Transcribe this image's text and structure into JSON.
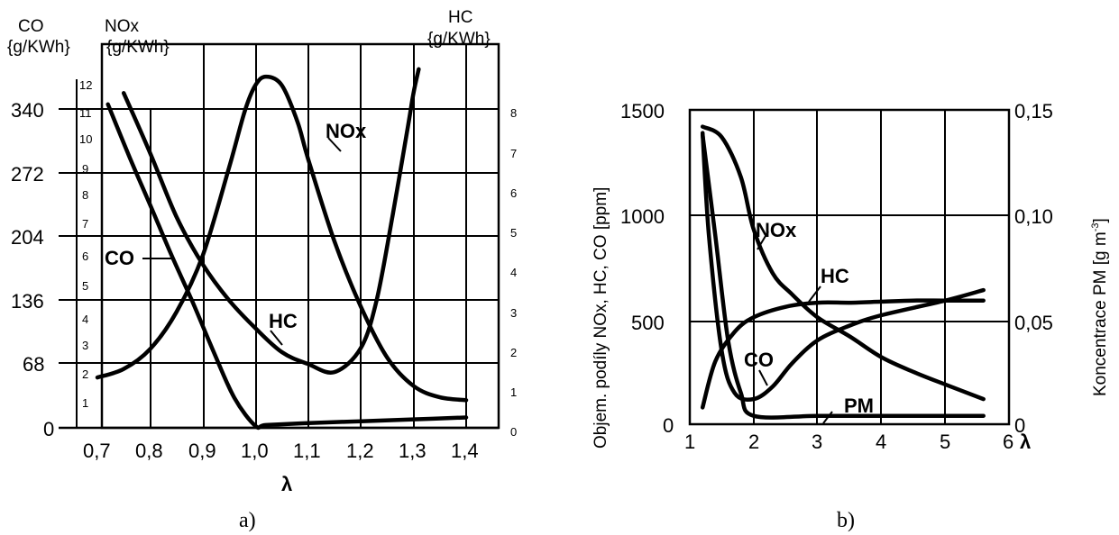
{
  "chart_data": [
    {
      "panel": "a)",
      "type": "line",
      "xlabel": "λ",
      "x_ticks": [
        "0,7",
        "0,8",
        "0,9",
        "1,0",
        "1,1",
        "1,2",
        "1,3",
        "1,4"
      ],
      "xlim": [
        0.7,
        1.4
      ],
      "axis_co": {
        "title": [
          "CO",
          "{g/KWh}"
        ],
        "ticks": [
          "0",
          "68",
          "136",
          "204",
          "272",
          "340"
        ],
        "lim": [
          0,
          340
        ]
      },
      "axis_nox": {
        "title": [
          "NOx",
          "{g/KWh}"
        ],
        "ticks": [
          "1",
          "2",
          "3",
          "4",
          "5",
          "6",
          "7",
          "8",
          "9",
          "10",
          "11",
          "12"
        ],
        "lim": [
          0,
          12
        ]
      },
      "axis_hc": {
        "title": [
          "HC",
          "{g/KWh}"
        ],
        "ticks": [
          "0",
          "1",
          "2",
          "3",
          "4",
          "5",
          "6",
          "7",
          "8"
        ],
        "lim": [
          0,
          8
        ]
      },
      "series": [
        {
          "name": "CO",
          "axis": "co",
          "x": [
            0.72,
            0.76,
            0.8,
            0.84,
            0.88,
            0.92,
            0.96,
            1.0,
            1.02,
            1.1,
            1.2,
            1.3,
            1.4
          ],
          "y": [
            345,
            290,
            238,
            185,
            135,
            82,
            32,
            2,
            3,
            5,
            7,
            9,
            11
          ]
        },
        {
          "name": "NOx",
          "axis": "nox",
          "x": [
            0.7,
            0.75,
            0.8,
            0.85,
            0.9,
            0.95,
            0.98,
            1.0,
            1.02,
            1.05,
            1.08,
            1.1,
            1.15,
            1.2,
            1.25,
            1.3,
            1.35,
            1.4
          ],
          "y": [
            1.3,
            1.6,
            2.3,
            3.6,
            5.6,
            8.7,
            10.7,
            11.6,
            11.9,
            11.6,
            10.3,
            9.0,
            6.1,
            3.8,
            2.0,
            1.0,
            0.6,
            0.5
          ]
        },
        {
          "name": "HC",
          "axis": "hc",
          "x": [
            0.75,
            0.8,
            0.85,
            0.9,
            0.95,
            1.0,
            1.05,
            1.1,
            1.15,
            1.2,
            1.23,
            1.26,
            1.29,
            1.3,
            1.31
          ],
          "y": [
            8.4,
            6.9,
            5.3,
            4.1,
            3.2,
            2.5,
            1.9,
            1.6,
            1.4,
            2.0,
            3.2,
            5.3,
            7.6,
            8.4,
            9.0
          ]
        }
      ],
      "annotations": [
        "CO",
        "NOx",
        "HC"
      ]
    },
    {
      "panel": "b)",
      "type": "line",
      "xlabel": "λ",
      "x_ticks": [
        "1",
        "2",
        "3",
        "4",
        "5",
        "6"
      ],
      "xlim": [
        1,
        6
      ],
      "ylabel_left": "Objem. podíly NOx, HC, CO [ppm]",
      "ylabel_right": "Koncentrace PM [g m",
      "ylabel_right_sup": "-3",
      "ylabel_right_end": "]",
      "y_left_ticks": [
        "0",
        "500",
        "1000",
        "1500"
      ],
      "ylim_left": [
        0,
        1500
      ],
      "y_right_ticks": [
        "0",
        "0,05",
        "0,10",
        "0,15"
      ],
      "ylim_right": [
        0,
        0.15
      ],
      "series": [
        {
          "name": "NOx",
          "axis": "left",
          "x": [
            1.2,
            1.5,
            1.8,
            2.0,
            2.3,
            2.6,
            3.0,
            3.5,
            4.0,
            4.5,
            5.0,
            5.6
          ],
          "y": [
            1420,
            1370,
            1180,
            930,
            720,
            620,
            510,
            420,
            320,
            250,
            190,
            120
          ]
        },
        {
          "name": "HC",
          "axis": "left",
          "x": [
            1.2,
            1.4,
            1.7,
            2.0,
            2.5,
            3.0,
            3.5,
            4.0,
            4.5,
            5.0,
            5.6
          ],
          "y": [
            80,
            300,
            440,
            510,
            560,
            580,
            580,
            585,
            590,
            590,
            590
          ]
        },
        {
          "name": "CO",
          "axis": "left",
          "x": [
            1.2,
            1.3,
            1.5,
            1.7,
            2.0,
            2.3,
            2.6,
            3.0,
            3.5,
            4.0,
            5.0,
            5.6
          ],
          "y": [
            1390,
            900,
            350,
            150,
            120,
            180,
            290,
            400,
            470,
            520,
            590,
            640
          ]
        },
        {
          "name": "PM",
          "axis": "right",
          "x": [
            1.2,
            1.4,
            1.6,
            1.8,
            2.0,
            3.0,
            4.0,
            5.0,
            5.6
          ],
          "y": [
            0.138,
            0.09,
            0.04,
            0.015,
            0.004,
            0.004,
            0.004,
            0.004,
            0.004
          ]
        }
      ],
      "annotations": [
        "NOx",
        "HC",
        "CO",
        "PM"
      ]
    }
  ]
}
